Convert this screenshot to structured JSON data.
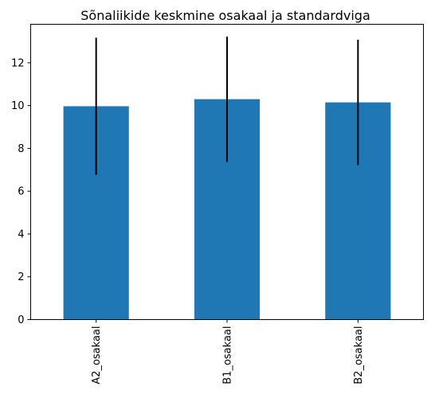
{
  "chart_data": {
    "type": "bar",
    "title": "Sõnaliikide keskmine osakaal ja standardviga",
    "categories": [
      "A2_osakaal",
      "B1_osakaal",
      "B2_osakaal"
    ],
    "values": [
      9.97,
      10.3,
      10.15
    ],
    "errors": [
      3.2,
      2.93,
      2.93
    ],
    "ylim": [
      0,
      13.8
    ],
    "yticks": [
      0,
      2,
      4,
      6,
      8,
      10,
      12
    ],
    "xlabel": "",
    "ylabel": "",
    "bar_color": "#1f77b4",
    "error_color": "#000000",
    "grid": false,
    "legend": false
  }
}
